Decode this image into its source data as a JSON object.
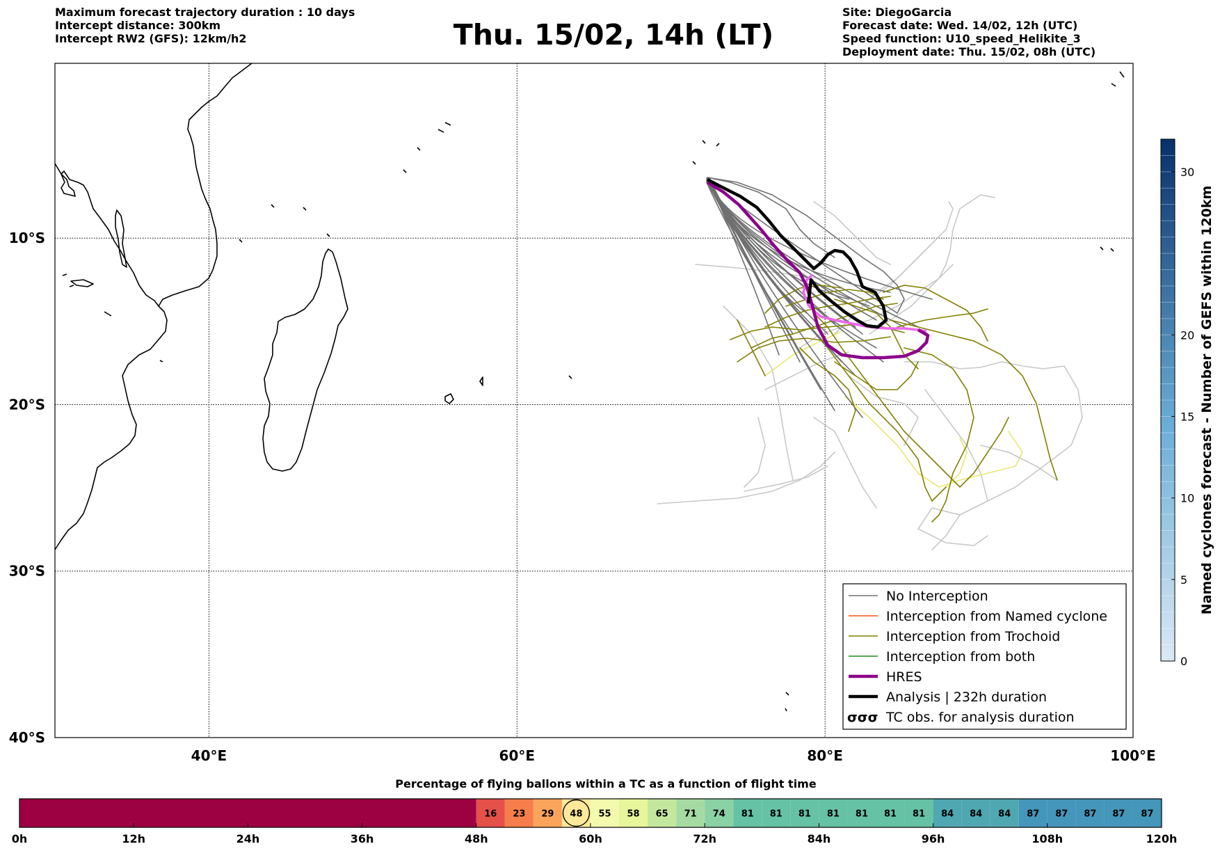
{
  "header": {
    "left": [
      "Maximum forecast trajectory duration : 10 days",
      "Intercept distance: 300km",
      "Intercept RW2 (GFS):  12km/h2"
    ],
    "title": "Thu. 15/02, 14h (LT)",
    "right": [
      "Site: DiegoGarcia",
      "Forecast date: Wed. 14/02, 12h (UTC)",
      "Speed function: U10_speed_Helikite_3",
      "Deployment date: Thu. 15/02, 08h (UTC)"
    ]
  },
  "map": {
    "extent": {
      "lon": [
        30,
        100
      ],
      "lat": [
        -40,
        0.5
      ]
    },
    "lon_ticks": [
      {
        "value": 40,
        "label": "40°E"
      },
      {
        "value": 60,
        "label": "60°E"
      },
      {
        "value": 80,
        "label": "80°E"
      },
      {
        "value": 100,
        "label": "100°E"
      }
    ],
    "lat_ticks": [
      {
        "value": -10,
        "label": "10°S"
      },
      {
        "value": -20,
        "label": "20°S"
      },
      {
        "value": -30,
        "label": "30°S"
      },
      {
        "value": -40,
        "label": "40°S"
      }
    ],
    "gridlines": true,
    "colors": {
      "no_interception": "#707070",
      "no_interception_light": "#c8c8c8",
      "named_cyclone": "#ff5010",
      "trochoid": "#808000",
      "trochoid_light": "#e8e870",
      "both": "#1a8a1a",
      "hres": "#8b008b",
      "hres_light": "#ee66ee",
      "analysis": "#000000"
    }
  },
  "legend": {
    "position": "lower-right",
    "items": [
      {
        "label": "No Interception",
        "style": "line",
        "color": "#707070"
      },
      {
        "label": "Interception from Named cyclone",
        "style": "line",
        "color": "#ff5010"
      },
      {
        "label": "Interception from Trochoid",
        "style": "line",
        "color": "#808000"
      },
      {
        "label": "Interception from both",
        "style": "line",
        "color": "#1a8a1a"
      },
      {
        "label": "HRES",
        "style": "thick",
        "color": "#8b008b"
      },
      {
        "label": "Analysis | 232h duration",
        "style": "thick",
        "color": "#000000"
      },
      {
        "label": "TC obs. for analysis duration",
        "style": "cyclone-icons",
        "color": "#000000"
      }
    ]
  },
  "colorbar": {
    "label": "Named cyclones forecast - Number of GEFS within 120km",
    "range": [
      0,
      32
    ],
    "ticks": [
      0,
      5,
      10,
      15,
      20,
      30
    ],
    "color_low": "#dbe9f6",
    "color_high": "#08306b"
  },
  "timebar": {
    "title": "Percentage of flying ballons within a TC as a function of flight time",
    "ticks": [
      "0h",
      "12h",
      "24h",
      "36h",
      "48h",
      "60h",
      "72h",
      "84h",
      "96h",
      "108h",
      "120h"
    ],
    "start_color": "#9e0142",
    "start_hours": 48,
    "highlight_index": 3,
    "segments": [
      {
        "value": "16",
        "color": "#e55049"
      },
      {
        "value": "23",
        "color": "#f67e4b"
      },
      {
        "value": "29",
        "color": "#fba45c"
      },
      {
        "value": "48",
        "color": "#fee89a"
      },
      {
        "value": "55",
        "color": "#f3faae"
      },
      {
        "value": "58",
        "color": "#e7f59b"
      },
      {
        "value": "65",
        "color": "#c4e79e"
      },
      {
        "value": "71",
        "color": "#a5dba3"
      },
      {
        "value": "74",
        "color": "#8ad1a4"
      },
      {
        "value": "81",
        "color": "#66c2a5"
      },
      {
        "value": "81",
        "color": "#66c2a5"
      },
      {
        "value": "81",
        "color": "#66c2a5"
      },
      {
        "value": "81",
        "color": "#66c2a5"
      },
      {
        "value": "81",
        "color": "#66c2a5"
      },
      {
        "value": "81",
        "color": "#66c2a5"
      },
      {
        "value": "81",
        "color": "#66c2a5"
      },
      {
        "value": "84",
        "color": "#4fa8b1"
      },
      {
        "value": "84",
        "color": "#4fa8b1"
      },
      {
        "value": "84",
        "color": "#4fa8b1"
      },
      {
        "value": "87",
        "color": "#4496bb"
      },
      {
        "value": "87",
        "color": "#4496bb"
      },
      {
        "value": "87",
        "color": "#4496bb"
      },
      {
        "value": "87",
        "color": "#4496bb"
      },
      {
        "value": "87",
        "color": "#4496bb"
      }
    ]
  }
}
